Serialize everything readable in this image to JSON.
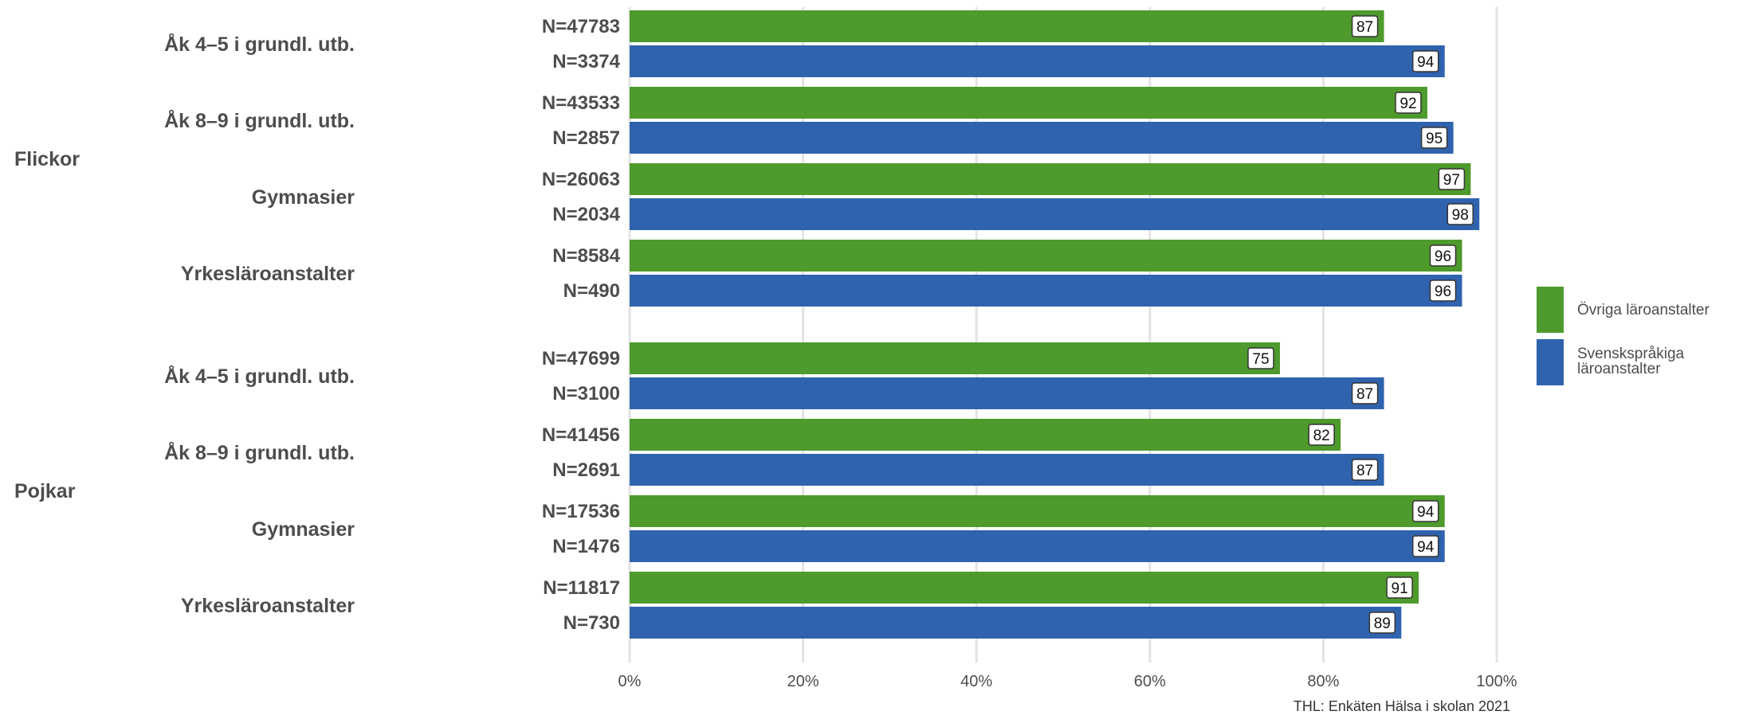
{
  "chart_data": {
    "type": "bar",
    "orientation": "horizontal",
    "xlim": [
      0,
      100
    ],
    "x_ticks": [
      "0%",
      "20%",
      "40%",
      "60%",
      "80%",
      "100%"
    ],
    "grid": true,
    "legend_position": "right",
    "colors": {
      "ovriga": "#4e9a2c",
      "svensk": "#2f63ae"
    },
    "series": [
      {
        "key": "ovriga",
        "name": "Övriga läroanstalter"
      },
      {
        "key": "svensk",
        "name": "Svenskspråkiga läroanstalter"
      }
    ],
    "groups": [
      {
        "name": "Flickor",
        "categories": [
          {
            "name": "Åk 4–5 i grundl. utb.",
            "bars": [
              {
                "series": "ovriga",
                "n": "N=47783",
                "value": 87
              },
              {
                "series": "svensk",
                "n": "N=3374",
                "value": 94
              }
            ]
          },
          {
            "name": "Åk 8–9 i grundl. utb.",
            "bars": [
              {
                "series": "ovriga",
                "n": "N=43533",
                "value": 92
              },
              {
                "series": "svensk",
                "n": "N=2857",
                "value": 95
              }
            ]
          },
          {
            "name": "Gymnasier",
            "bars": [
              {
                "series": "ovriga",
                "n": "N=26063",
                "value": 97
              },
              {
                "series": "svensk",
                "n": "N=2034",
                "value": 98
              }
            ]
          },
          {
            "name": "Yrkesläroanstalter",
            "bars": [
              {
                "series": "ovriga",
                "n": "N=8584",
                "value": 96
              },
              {
                "series": "svensk",
                "n": "N=490",
                "value": 96
              }
            ]
          }
        ]
      },
      {
        "name": "Pojkar",
        "categories": [
          {
            "name": "Åk 4–5 i grundl. utb.",
            "bars": [
              {
                "series": "ovriga",
                "n": "N=47699",
                "value": 75
              },
              {
                "series": "svensk",
                "n": "N=3100",
                "value": 87
              }
            ]
          },
          {
            "name": "Åk 8–9 i grundl. utb.",
            "bars": [
              {
                "series": "ovriga",
                "n": "N=41456",
                "value": 82
              },
              {
                "series": "svensk",
                "n": "N=2691",
                "value": 87
              }
            ]
          },
          {
            "name": "Gymnasier",
            "bars": [
              {
                "series": "ovriga",
                "n": "N=17536",
                "value": 94
              },
              {
                "series": "svensk",
                "n": "N=1476",
                "value": 94
              }
            ]
          },
          {
            "name": "Yrkesläroanstalter",
            "bars": [
              {
                "series": "ovriga",
                "n": "N=11817",
                "value": 91
              },
              {
                "series": "svensk",
                "n": "N=730",
                "value": 89
              }
            ]
          }
        ]
      }
    ],
    "source": "THL: Enkäten Hälsa i skolan 2021"
  }
}
